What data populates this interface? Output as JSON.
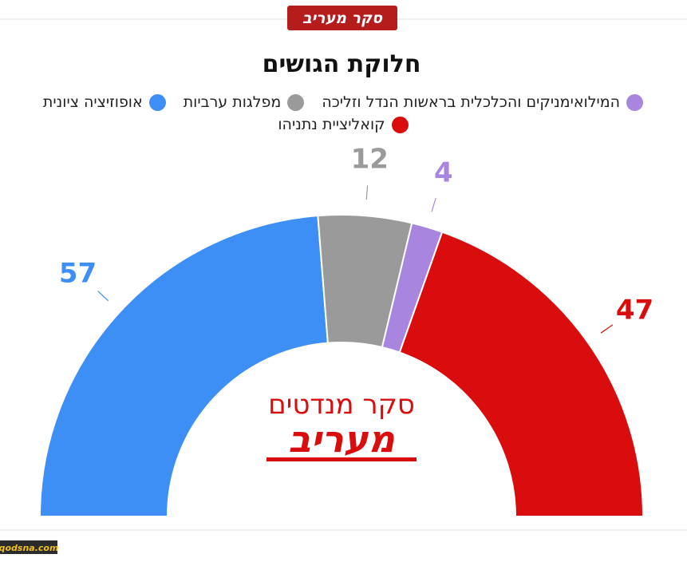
{
  "chart_data": {
    "type": "half-donut",
    "title": "חלוקת הגושים",
    "categories": [
      "אופוזיציה ציונית",
      "מפלגות ערביות",
      "המילואימניקים והכלכלית בראשות הנדל וזליכה",
      "קואליציית נתניהו"
    ],
    "values": [
      57,
      12,
      4,
      47
    ],
    "colors": [
      "#3d8ef5",
      "#9a9a9a",
      "#a886e0",
      "#d90d0d"
    ],
    "legend_order": [
      2,
      1,
      0,
      3
    ]
  },
  "branding": {
    "badge": "סקר מעריב",
    "center_line1": "סקר מנדטים",
    "center_line2": "מעריב",
    "watermark": "qodsna.com"
  }
}
